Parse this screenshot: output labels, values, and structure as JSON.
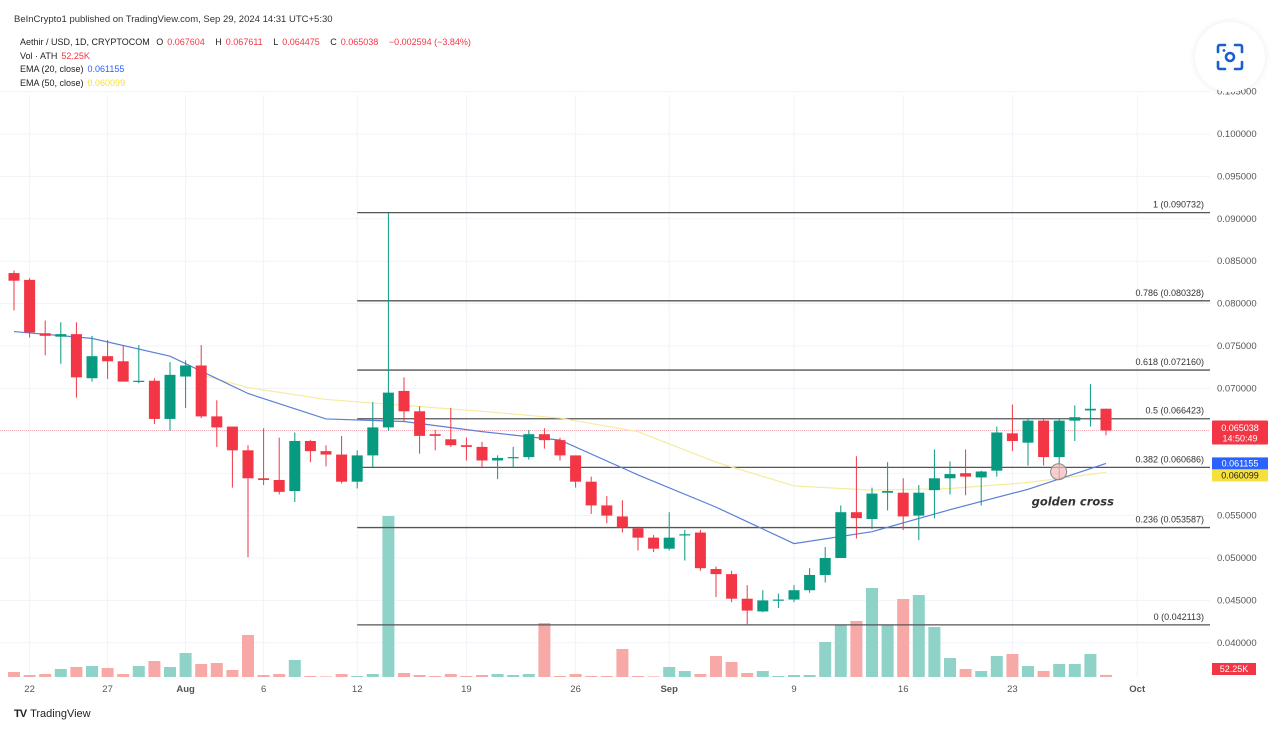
{
  "header": {
    "publisher": "BeInCrypto1 published on TradingView.com, Sep 29, 2024 14:31 UTC+5:30",
    "symbol": "Aethir / USD, 1D, CRYPTOCOM",
    "o_label": "O",
    "o_value": "0.067604",
    "h_label": "H",
    "h_value": "0.067611",
    "l_label": "L",
    "l_value": "0.064475",
    "c_label": "C",
    "c_value": "0.065038",
    "change": "−0.002594 (−3.84%)",
    "vol_label": "Vol · ATH",
    "vol_value": "52.25K",
    "ema20_label": "EMA (20, close)",
    "ema20_value": "0.061155",
    "ema50_label": "EMA (50, close)",
    "ema50_value": "0.060099"
  },
  "lens_icon": "camera-scan-icon",
  "footer": {
    "logo_text": "TradingView",
    "logo_mark": "TV"
  },
  "colors": {
    "up": "#089981",
    "down": "#f23645",
    "vol_up": "#8fd3c8",
    "vol_down": "#f7a9a7",
    "ema20": "#5b7fd6",
    "ema50": "#f5ec9c",
    "fib": "#555555",
    "last_price_tag": "#f23645",
    "ema20_tag": "#2962ff",
    "ema50_tag": "#f7e03a"
  },
  "chart_data": {
    "type": "candlestick",
    "title": "",
    "interval": "1D",
    "y_axis": {
      "ticks": [
        "0.105000",
        "0.100000",
        "0.095000",
        "0.090000",
        "0.085000",
        "0.080000",
        "0.075000",
        "0.070000",
        "0.055000",
        "0.050000",
        "0.045000",
        "0.040000"
      ],
      "ylim": [
        0.0375,
        0.1065
      ],
      "position": "right"
    },
    "x_axis": {
      "ticks": [
        {
          "date": "2024-07-22",
          "label": "22",
          "bold": false
        },
        {
          "date": "2024-07-27",
          "label": "27",
          "bold": false
        },
        {
          "date": "2024-08-01",
          "label": "Aug",
          "bold": true
        },
        {
          "date": "2024-08-06",
          "label": "6",
          "bold": false
        },
        {
          "date": "2024-08-12",
          "label": "12",
          "bold": false
        },
        {
          "date": "2024-08-19",
          "label": "19",
          "bold": false
        },
        {
          "date": "2024-08-26",
          "label": "26",
          "bold": false
        },
        {
          "date": "2024-09-01",
          "label": "Sep",
          "bold": true
        },
        {
          "date": "2024-09-09",
          "label": "9",
          "bold": false
        },
        {
          "date": "2024-09-16",
          "label": "16",
          "bold": false
        },
        {
          "date": "2024-09-23",
          "label": "23",
          "bold": false
        },
        {
          "date": "2024-10-01",
          "label": "Oct",
          "bold": true
        }
      ]
    },
    "grid": true,
    "candles": [
      [
        "2024-07-21",
        0.0836,
        0.0839,
        0.0792,
        0.0827
      ],
      [
        "2024-07-22",
        0.0828,
        0.083,
        0.076,
        0.0766
      ],
      [
        "2024-07-23",
        0.0765,
        0.078,
        0.0739,
        0.0762
      ],
      [
        "2024-07-24",
        0.0761,
        0.0778,
        0.0729,
        0.0764
      ],
      [
        "2024-07-25",
        0.0764,
        0.0778,
        0.0689,
        0.0713
      ],
      [
        "2024-07-26",
        0.0712,
        0.0762,
        0.0708,
        0.0738
      ],
      [
        "2024-07-27",
        0.0738,
        0.0757,
        0.0711,
        0.0732
      ],
      [
        "2024-07-28",
        0.0732,
        0.0751,
        0.0708,
        0.0708
      ],
      [
        "2024-07-29",
        0.0708,
        0.0751,
        0.0706,
        0.0709
      ],
      [
        "2024-07-30",
        0.0709,
        0.0712,
        0.0658,
        0.0664
      ],
      [
        "2024-07-31",
        0.0664,
        0.0731,
        0.065,
        0.0716
      ],
      [
        "2024-08-01",
        0.0714,
        0.0733,
        0.0677,
        0.0727
      ],
      [
        "2024-08-02",
        0.0727,
        0.0751,
        0.0665,
        0.0667
      ],
      [
        "2024-08-03",
        0.0667,
        0.0686,
        0.0631,
        0.0654
      ],
      [
        "2024-08-04",
        0.0655,
        0.0655,
        0.0583,
        0.0627
      ],
      [
        "2024-08-05",
        0.0627,
        0.0633,
        0.0501,
        0.0594
      ],
      [
        "2024-08-06",
        0.0594,
        0.0653,
        0.0586,
        0.0592
      ],
      [
        "2024-08-07",
        0.0592,
        0.0642,
        0.0575,
        0.0578
      ],
      [
        "2024-08-08",
        0.0579,
        0.0648,
        0.0566,
        0.0638
      ],
      [
        "2024-08-09",
        0.0638,
        0.0639,
        0.0613,
        0.0626
      ],
      [
        "2024-08-10",
        0.0626,
        0.0633,
        0.0608,
        0.0622
      ],
      [
        "2024-08-11",
        0.0622,
        0.0644,
        0.0588,
        0.059
      ],
      [
        "2024-08-12",
        0.059,
        0.0627,
        0.0582,
        0.0621
      ],
      [
        "2024-08-13",
        0.0621,
        0.0684,
        0.0607,
        0.0654
      ],
      [
        "2024-08-14",
        0.0654,
        0.0907,
        0.065,
        0.0695
      ],
      [
        "2024-08-15",
        0.0697,
        0.0713,
        0.0661,
        0.0673
      ],
      [
        "2024-08-16",
        0.0673,
        0.0679,
        0.0623,
        0.0644
      ],
      [
        "2024-08-17",
        0.0646,
        0.0651,
        0.0627,
        0.0644
      ],
      [
        "2024-08-18",
        0.064,
        0.0677,
        0.0631,
        0.0633
      ],
      [
        "2024-08-19",
        0.0633,
        0.0642,
        0.0615,
        0.0631
      ],
      [
        "2024-08-20",
        0.0631,
        0.0637,
        0.0606,
        0.0615
      ],
      [
        "2024-08-21",
        0.0615,
        0.0621,
        0.0593,
        0.0618
      ],
      [
        "2024-08-22",
        0.0618,
        0.0631,
        0.0607,
        0.0619
      ],
      [
        "2024-08-23",
        0.0619,
        0.0651,
        0.0616,
        0.0646
      ],
      [
        "2024-08-24",
        0.0646,
        0.0653,
        0.0629,
        0.0639
      ],
      [
        "2024-08-25",
        0.0639,
        0.0642,
        0.0615,
        0.0621
      ],
      [
        "2024-08-26",
        0.0621,
        0.0621,
        0.0583,
        0.059
      ],
      [
        "2024-08-27",
        0.059,
        0.0596,
        0.0552,
        0.0562
      ],
      [
        "2024-08-28",
        0.0562,
        0.0573,
        0.0541,
        0.055
      ],
      [
        "2024-08-29",
        0.0549,
        0.0568,
        0.053,
        0.0536
      ],
      [
        "2024-08-30",
        0.0535,
        0.0537,
        0.0509,
        0.0524
      ],
      [
        "2024-08-31",
        0.0524,
        0.0527,
        0.0507,
        0.0511
      ],
      [
        "2024-09-01",
        0.0511,
        0.0554,
        0.0509,
        0.0524
      ],
      [
        "2024-09-02",
        0.0527,
        0.0533,
        0.0497,
        0.0528
      ],
      [
        "2024-09-03",
        0.053,
        0.0533,
        0.0485,
        0.0488
      ],
      [
        "2024-09-04",
        0.0487,
        0.049,
        0.0454,
        0.0481
      ],
      [
        "2024-09-05",
        0.0481,
        0.0485,
        0.0448,
        0.0452
      ],
      [
        "2024-09-06",
        0.0452,
        0.0468,
        0.0422,
        0.0438
      ],
      [
        "2024-09-07",
        0.0437,
        0.0462,
        0.0436,
        0.045
      ],
      [
        "2024-09-08",
        0.045,
        0.0458,
        0.0441,
        0.0451
      ],
      [
        "2024-09-09",
        0.0451,
        0.0468,
        0.0448,
        0.0462
      ],
      [
        "2024-09-10",
        0.0462,
        0.0488,
        0.0459,
        0.048
      ],
      [
        "2024-09-11",
        0.048,
        0.0513,
        0.0471,
        0.05
      ],
      [
        "2024-09-12",
        0.05,
        0.0562,
        0.05,
        0.0554
      ],
      [
        "2024-09-13",
        0.0554,
        0.062,
        0.0523,
        0.0547
      ],
      [
        "2024-09-14",
        0.0546,
        0.0583,
        0.0534,
        0.0576
      ],
      [
        "2024-09-15",
        0.0577,
        0.0613,
        0.0556,
        0.0579
      ],
      [
        "2024-09-16",
        0.0577,
        0.0594,
        0.0533,
        0.0549
      ],
      [
        "2024-09-17",
        0.055,
        0.0586,
        0.0521,
        0.0577
      ],
      [
        "2024-09-18",
        0.058,
        0.0628,
        0.0547,
        0.0594
      ],
      [
        "2024-09-19",
        0.0594,
        0.0614,
        0.0575,
        0.0599
      ],
      [
        "2024-09-20",
        0.06,
        0.0628,
        0.0574,
        0.0596
      ],
      [
        "2024-09-21",
        0.0595,
        0.0603,
        0.0562,
        0.0602
      ],
      [
        "2024-09-22",
        0.0603,
        0.0655,
        0.0596,
        0.0648
      ],
      [
        "2024-09-23",
        0.0647,
        0.0681,
        0.0626,
        0.0638
      ],
      [
        "2024-09-24",
        0.0636,
        0.0665,
        0.0609,
        0.0662
      ],
      [
        "2024-09-25",
        0.0662,
        0.0665,
        0.0609,
        0.0619
      ],
      [
        "2024-09-26",
        0.0619,
        0.0665,
        0.0592,
        0.0662
      ],
      [
        "2024-09-27",
        0.0662,
        0.068,
        0.0638,
        0.0666
      ],
      [
        "2024-09-28",
        0.0674,
        0.0705,
        0.0655,
        0.0676
      ],
      [
        "2024-09-29",
        0.067604,
        0.067611,
        0.064475,
        0.065038
      ]
    ],
    "volume_k": [
      125,
      50,
      75,
      200,
      250,
      275,
      225,
      75,
      275,
      400,
      250,
      600,
      325,
      350,
      175,
      1050,
      50,
      75,
      425,
      25,
      12,
      75,
      25,
      75,
      4025,
      100,
      50,
      25,
      75,
      25,
      50,
      75,
      50,
      75,
      1350,
      25,
      75,
      25,
      25,
      700,
      25,
      0,
      250,
      150,
      75,
      525,
      375,
      100,
      150,
      25,
      50,
      50,
      875,
      1300,
      1400,
      2225,
      1300,
      1950,
      2050,
      1250,
      475,
      200,
      150,
      525,
      575,
      275,
      150,
      325,
      325,
      575,
      52.25
    ],
    "ema20": {
      "name": "EMA (20, close)",
      "dates": [
        "2024-07-21",
        "2024-07-26",
        "2024-07-31",
        "2024-08-05",
        "2024-08-10",
        "2024-08-15",
        "2024-08-20",
        "2024-08-25",
        "2024-08-30",
        "2024-09-04",
        "2024-09-09",
        "2024-09-14",
        "2024-09-19",
        "2024-09-24",
        "2024-09-29"
      ],
      "values": [
        0.0767,
        0.0759,
        0.0738,
        0.0694,
        0.0664,
        0.0661,
        0.0649,
        0.0639,
        0.0598,
        0.056,
        0.0517,
        0.0531,
        0.0557,
        0.0581,
        0.061155
      ]
    },
    "ema50": {
      "name": "EMA (50, close)",
      "dates": [
        "2024-08-02",
        "2024-08-05",
        "2024-08-10",
        "2024-08-15",
        "2024-08-20",
        "2024-08-25",
        "2024-08-30",
        "2024-09-04",
        "2024-09-09",
        "2024-09-14",
        "2024-09-19",
        "2024-09-24",
        "2024-09-29"
      ],
      "values": [
        0.0716,
        0.0701,
        0.0687,
        0.068,
        0.0673,
        0.0665,
        0.0649,
        0.0613,
        0.0585,
        0.058,
        0.0582,
        0.0589,
        0.060099
      ]
    },
    "fib_retracement": {
      "start_date": "2024-08-12",
      "levels": [
        {
          "ratio": 1,
          "price": 0.090732,
          "label": "1 (0.090732)"
        },
        {
          "ratio": 0.786,
          "price": 0.080328,
          "label": "0.786 (0.080328)"
        },
        {
          "ratio": 0.618,
          "price": 0.07216,
          "label": "0.618 (0.072160)"
        },
        {
          "ratio": 0.5,
          "price": 0.066423,
          "label": "0.5 (0.066423)"
        },
        {
          "ratio": 0.382,
          "price": 0.060686,
          "label": "0.382 (0.060686)"
        },
        {
          "ratio": 0.236,
          "price": 0.053587,
          "label": "0.236 (0.053587)"
        },
        {
          "ratio": 0,
          "price": 0.042113,
          "label": "0 (0.042113)"
        }
      ]
    },
    "annotation": {
      "text": "golden cross",
      "date": "2024-09-25",
      "price": 0.0597
    },
    "price_tags": {
      "last": {
        "price": 0.065038,
        "label": "0.065038",
        "countdown": "14:50:49"
      },
      "ema20": {
        "price": 0.061155,
        "label": "0.061155"
      },
      "ema50": {
        "price": 0.060099,
        "label": "0.060099"
      },
      "volume": {
        "label": "52.25K"
      }
    }
  }
}
